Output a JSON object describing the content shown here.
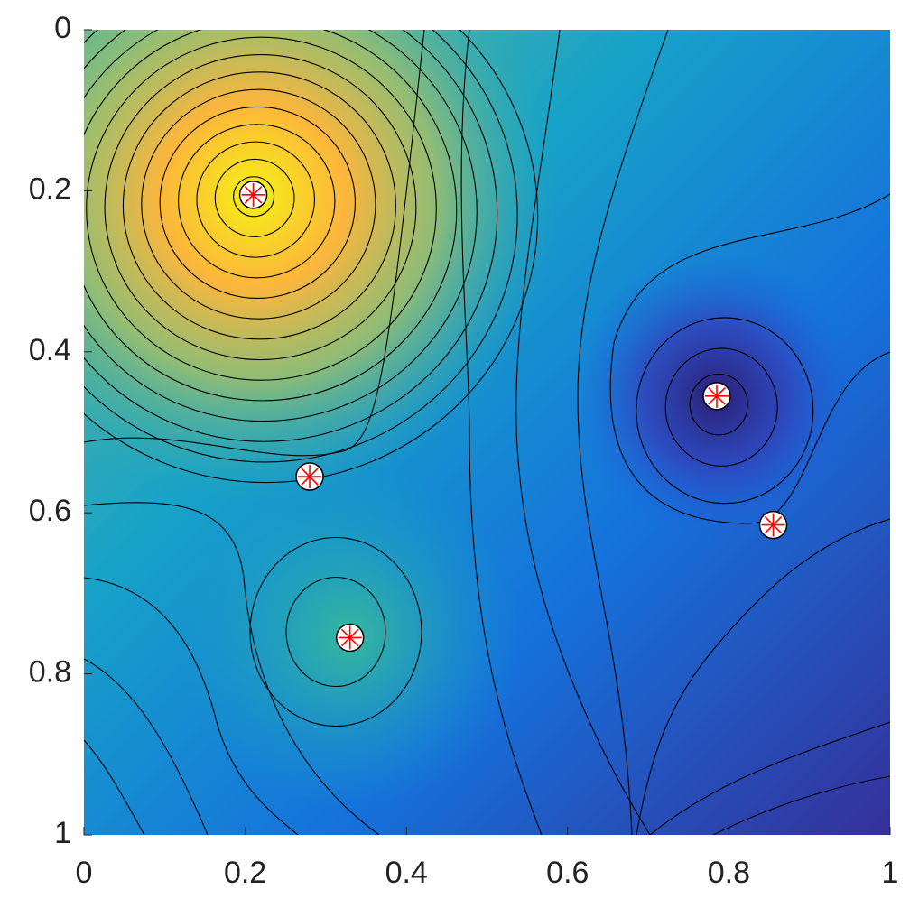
{
  "chart_data": {
    "type": "scatter",
    "x": [
      0.21,
      0.28,
      0.33,
      0.785,
      0.855
    ],
    "y": [
      0.205,
      0.555,
      0.755,
      0.455,
      0.615
    ],
    "xlim": [
      0,
      1
    ],
    "ylim": [
      0,
      1
    ],
    "xticks": [
      0,
      0.2,
      0.4,
      0.6,
      0.8,
      1
    ],
    "yticks": [
      0,
      0.2,
      0.4,
      0.6,
      0.8,
      1
    ],
    "y_reverse": true,
    "marker_color": "#ffffff",
    "marker_edge_color": "#000000",
    "star_color": "#ff0000"
  }
}
